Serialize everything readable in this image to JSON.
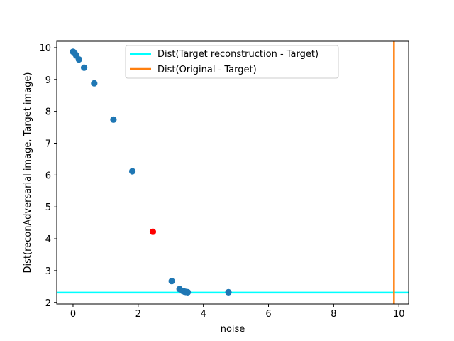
{
  "chart_data": {
    "type": "scatter",
    "title": "",
    "xlabel": "noise",
    "ylabel": "Dist(reconAdversarial image, Target image)",
    "xlim": [
      -0.5,
      10.3
    ],
    "ylim": [
      1.95,
      10.2
    ],
    "xticks": [
      0,
      2,
      4,
      6,
      8,
      10
    ],
    "yticks": [
      2,
      3,
      4,
      5,
      6,
      7,
      8,
      9,
      10
    ],
    "grid": false,
    "legend_position": "upper center",
    "series": [
      {
        "color": "#1f77b4",
        "points": [
          [
            0.0,
            9.87
          ],
          [
            0.05,
            9.82
          ],
          [
            0.1,
            9.75
          ],
          [
            0.18,
            9.63
          ],
          [
            0.34,
            9.37
          ],
          [
            0.65,
            8.88
          ],
          [
            1.24,
            7.74
          ],
          [
            1.82,
            6.12
          ],
          [
            3.03,
            2.67
          ],
          [
            3.27,
            2.42
          ],
          [
            3.37,
            2.36
          ],
          [
            3.42,
            2.34
          ],
          [
            3.47,
            2.33
          ],
          [
            3.52,
            2.32
          ],
          [
            4.77,
            2.32
          ]
        ]
      },
      {
        "color": "#ff0000",
        "points": [
          [
            2.45,
            4.22
          ]
        ]
      }
    ],
    "lines": [
      {
        "name": "Dist(Target reconstruction - Target)",
        "orientation": "horizontal",
        "value": 2.31,
        "color": "#00ffff"
      },
      {
        "name": "Dist(Original - Target)",
        "orientation": "vertical",
        "value": 9.85,
        "color": "#ff7f0e"
      }
    ]
  }
}
